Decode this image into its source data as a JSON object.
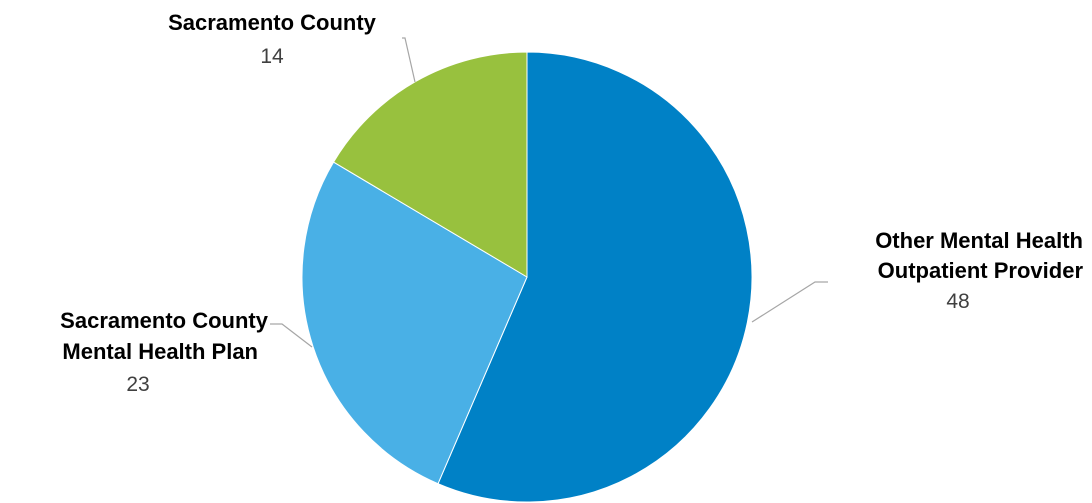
{
  "chart_data": {
    "type": "pie",
    "title": "",
    "slices": [
      {
        "label": "Other Mental Health Outpatient Provider",
        "label_lines": [
          "Other Mental Health",
          "Outpatient Provider"
        ],
        "value": 48,
        "display_value": "48",
        "color": "#0081C6"
      },
      {
        "label": "Sacramento County Mental Health Plan",
        "label_lines": [
          "Sacramento County",
          "Mental Health Plan"
        ],
        "value": 23,
        "display_value": "23",
        "color": "#49B0E6"
      },
      {
        "label": "Sacramento County",
        "label_lines": [
          "Sacramento County"
        ],
        "value": 14,
        "display_value": "14",
        "color": "#98C13E"
      }
    ],
    "start_angle": "12 o'clock",
    "direction": "clockwise",
    "legend": "none",
    "data_labels": "outside with leader lines"
  }
}
